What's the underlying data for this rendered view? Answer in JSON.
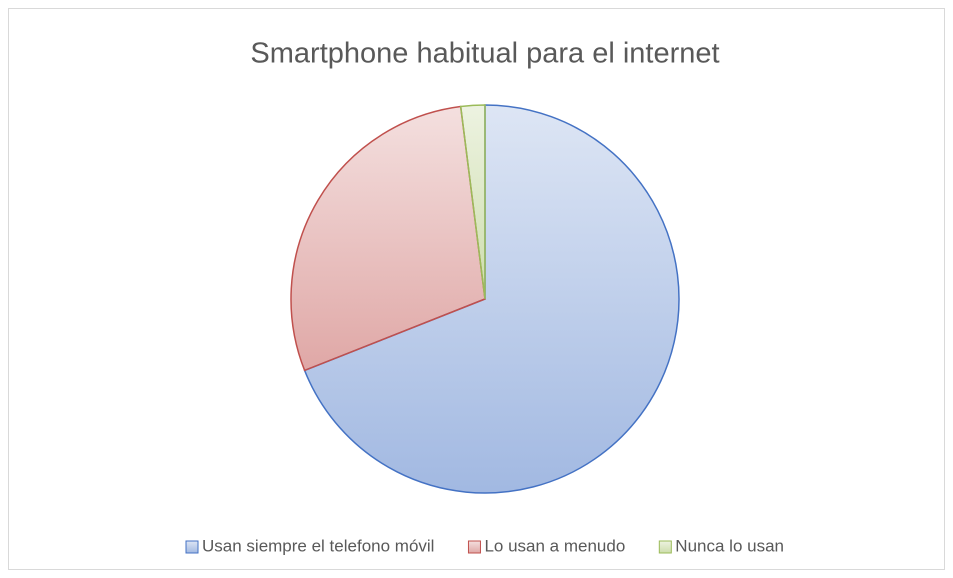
{
  "chart_data": {
    "type": "pie",
    "title": "Smartphone habitual para el internet",
    "categories": [
      "Usan siempre el telefono móvil",
      "Lo usan a menudo",
      "Nunca lo usan"
    ],
    "values": [
      69,
      29,
      2
    ],
    "colors": [
      "#4472c4",
      "#c0504d",
      "#9bbb59"
    ],
    "legend": "bottom"
  }
}
